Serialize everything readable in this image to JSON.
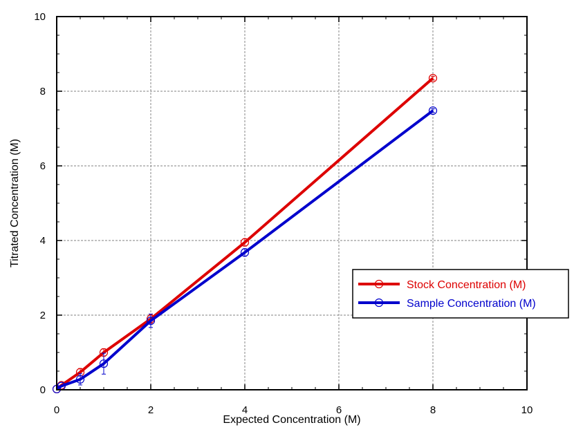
{
  "chart_data": {
    "type": "line",
    "title": "",
    "xlabel": "Expected Concentration (M)",
    "ylabel": "Titrated Concentration (M)",
    "xlim": [
      0,
      10
    ],
    "ylim": [
      0,
      10
    ],
    "xticks": [
      0,
      2,
      4,
      6,
      8,
      10
    ],
    "yticks": [
      0,
      2,
      4,
      6,
      8,
      10
    ],
    "xtick_labels": [
      "0",
      "2",
      "4",
      "6",
      "8",
      "10"
    ],
    "ytick_labels": [
      "0",
      "2",
      "4",
      "6",
      "8",
      "10"
    ],
    "grid": true,
    "legend_position": "right",
    "series": [
      {
        "name": "Stock Concentration (M)",
        "color": "#dd0000",
        "marker": "open-circle",
        "x": [
          0,
          0.1,
          0.5,
          1,
          2,
          4,
          8
        ],
        "y": [
          0.02,
          0.12,
          0.47,
          1.0,
          1.9,
          3.95,
          8.35
        ],
        "yerr": [
          0,
          0,
          0.1,
          0.1,
          0.12,
          0.1,
          0.05
        ]
      },
      {
        "name": "Sample Concentration (M)",
        "color": "#0000cc",
        "marker": "open-circle",
        "x": [
          0,
          0.1,
          0.5,
          1,
          2,
          4,
          8
        ],
        "y": [
          0.02,
          0.1,
          0.28,
          0.7,
          1.85,
          3.68,
          7.48
        ],
        "yerr": [
          0,
          0,
          0.15,
          0.28,
          0.18,
          0.1,
          0.05
        ]
      }
    ]
  }
}
